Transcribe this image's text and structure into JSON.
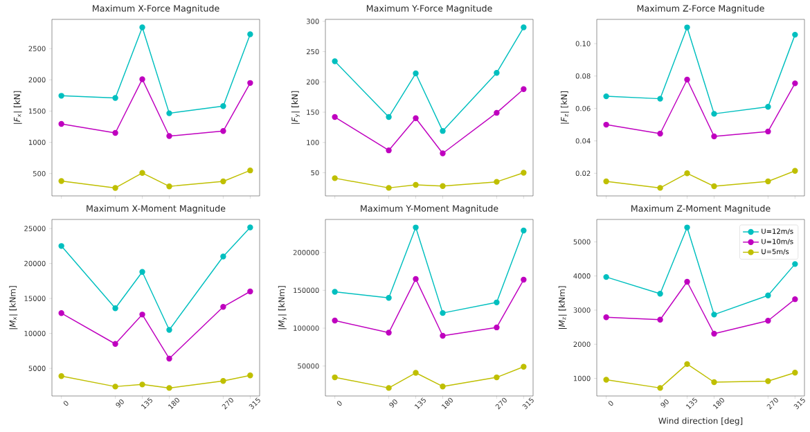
{
  "chart_data": [
    {
      "type": "line",
      "title": "Maximum X-Force Magnitude",
      "ylabel": "|*F*$_{x}$| [kN]",
      "x": [
        0,
        90,
        135,
        180,
        270,
        315
      ],
      "xlim": [
        -15.75,
        330.75
      ],
      "xticks": [
        0,
        90,
        135,
        180,
        270,
        315
      ],
      "ylim": [
        142,
        2968
      ],
      "yticks": [
        500,
        1000,
        1500,
        2000,
        2500
      ],
      "marker": "circle",
      "tick_labels": "y",
      "series": [
        {
          "color": "#00bfbf",
          "values": [
            1745,
            1710,
            2840,
            1465,
            1580,
            2730
          ]
        },
        {
          "color": "#bf00bf",
          "values": [
            1295,
            1150,
            2010,
            1100,
            1180,
            1950
          ]
        },
        {
          "color": "#bfbf00",
          "values": [
            380,
            270,
            510,
            295,
            375,
            550
          ]
        }
      ]
    },
    {
      "type": "line",
      "title": "Maximum Y-Force Magnitude",
      "ylabel": "|*F*$_{y}$| [kN]",
      "x": [
        0,
        90,
        135,
        180,
        270,
        315
      ],
      "xlim": [
        -15.75,
        330.75
      ],
      "xticks": [
        0,
        90,
        135,
        180,
        270,
        315
      ],
      "ylim": [
        11.75,
        303.25
      ],
      "yticks": [
        50,
        100,
        150,
        200,
        250,
        300
      ],
      "marker": "circle",
      "tick_labels": "y",
      "series": [
        {
          "color": "#00bfbf",
          "values": [
            234,
            142,
            214,
            119,
            215,
            290
          ]
        },
        {
          "color": "#bf00bf",
          "values": [
            142,
            87,
            140,
            82,
            149,
            188
          ]
        },
        {
          "color": "#bfbf00",
          "values": [
            41,
            25,
            30,
            28,
            35,
            50
          ]
        }
      ]
    },
    {
      "type": "line",
      "title": "Maximum Z-Force Magnitude",
      "ylabel": "|*F*$_{z}$| [kN]",
      "x": [
        0,
        90,
        135,
        180,
        270,
        315
      ],
      "xlim": [
        -15.75,
        330.75
      ],
      "xticks": [
        0,
        90,
        135,
        180,
        270,
        315
      ],
      "ylim": [
        0.00605,
        0.11495
      ],
      "yticks": [
        {
          "value": 0.02,
          "label": "0.02"
        },
        {
          "value": 0.04,
          "label": "0.04"
        },
        {
          "value": 0.06,
          "label": "0.06"
        },
        {
          "value": 0.08,
          "label": "0.08"
        },
        {
          "value": 0.1,
          "label": "0.10"
        }
      ],
      "marker": "circle",
      "tick_labels": "y",
      "series": [
        {
          "color": "#00bfbf",
          "values": [
            0.0675,
            0.066,
            0.11,
            0.0567,
            0.061,
            0.1055
          ]
        },
        {
          "color": "#bf00bf",
          "values": [
            0.05,
            0.0445,
            0.0778,
            0.0428,
            0.0458,
            0.0755
          ]
        },
        {
          "color": "#bfbf00",
          "values": [
            0.015,
            0.011,
            0.02,
            0.012,
            0.015,
            0.0215
          ]
        }
      ]
    },
    {
      "type": "line",
      "title": "Maximum X-Moment Magnitude",
      "ylabel": "|*M*$_{x}$| [kNm]",
      "x": [
        0,
        90,
        135,
        180,
        270,
        315
      ],
      "xlim": [
        -15.75,
        330.75
      ],
      "xticks": [
        0,
        90,
        135,
        180,
        270,
        315
      ],
      "ylim": [
        1053,
        26297
      ],
      "yticks": [
        5000,
        10000,
        15000,
        20000,
        25000
      ],
      "marker": "circle",
      "series": [
        {
          "color": "#00bfbf",
          "values": [
            22500,
            13600,
            18800,
            10500,
            21000,
            25150
          ]
        },
        {
          "color": "#bf00bf",
          "values": [
            12900,
            8500,
            12700,
            6400,
            13800,
            16000
          ]
        },
        {
          "color": "#bfbf00",
          "values": [
            3900,
            2400,
            2700,
            2200,
            3200,
            4000
          ]
        }
      ]
    },
    {
      "type": "line",
      "title": "Maximum Y-Moment Magnitude",
      "ylabel": "|*M*$_{y}$| [kNm]",
      "x": [
        0,
        90,
        135,
        180,
        270,
        315
      ],
      "xlim": [
        -15.75,
        330.75
      ],
      "xticks": [
        0,
        90,
        135,
        180,
        270,
        315
      ],
      "ylim": [
        10400,
        243600
      ],
      "yticks": [
        50000,
        100000,
        150000,
        200000
      ],
      "marker": "circle",
      "series": [
        {
          "color": "#00bfbf",
          "values": [
            148000,
            140000,
            233000,
            120000,
            134000,
            229000
          ]
        },
        {
          "color": "#bf00bf",
          "values": [
            110000,
            94000,
            165000,
            90000,
            101000,
            164000
          ]
        },
        {
          "color": "#bfbf00",
          "values": [
            35000,
            21000,
            41000,
            23000,
            35000,
            49000
          ]
        }
      ]
    },
    {
      "type": "line",
      "title": "Maximum Z-Moment Magnitude",
      "ylabel": "|*M*$_{z}$| [kNm]",
      "xlabel": "Wind direction [deg]",
      "x": [
        0,
        90,
        135,
        180,
        270,
        315
      ],
      "xlim": [
        -15.75,
        330.75
      ],
      "xticks": [
        0,
        90,
        135,
        180,
        270,
        315
      ],
      "ylim": [
        485,
        5655
      ],
      "yticks": [
        1000,
        2000,
        3000,
        4000,
        5000
      ],
      "marker": "circle",
      "legend": "top right",
      "series": [
        {
          "name": "U=12m/s",
          "color": "#00bfbf",
          "values": [
            3970,
            3480,
            5420,
            2870,
            3430,
            4350
          ]
        },
        {
          "name": "U=10m/s",
          "color": "#bf00bf",
          "values": [
            2790,
            2720,
            3830,
            2310,
            2690,
            3320
          ]
        },
        {
          "name": "U=5m/s",
          "color": "#bfbf00",
          "values": [
            960,
            720,
            1420,
            890,
            920,
            1170
          ]
        }
      ]
    }
  ]
}
